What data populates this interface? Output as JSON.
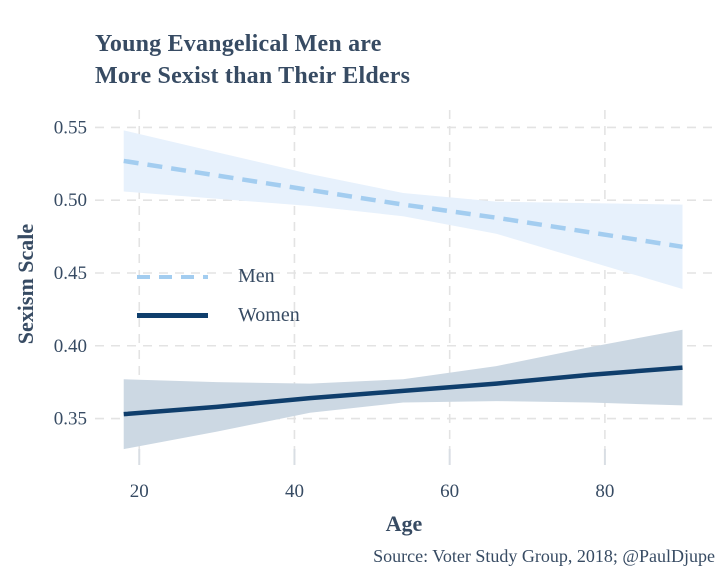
{
  "title": {
    "line1": "Young Evangelical Men are",
    "line2": "More Sexist than Their Elders"
  },
  "axes": {
    "x_label": "Age",
    "y_label": "Sexism Scale"
  },
  "legend": [
    {
      "label": "Men"
    },
    {
      "label": "Women"
    }
  ],
  "source": "Source: Voter Study Group, 2018; @PaulDjupe",
  "colors": {
    "ink": "#374B63",
    "grid": "#E3E3E3",
    "tick": "#D9DEE4",
    "men_line": "#A3CDF0",
    "men_band": "#E7F1FC",
    "women_line": "#0F3E6C",
    "women_band": "#CCD8E3"
  },
  "chart_data": {
    "type": "line",
    "title": "Young Evangelical Men are More Sexist than Their Elders",
    "xlabel": "Age",
    "ylabel": "Sexism Scale",
    "xlim": [
      14.3,
      93.8
    ],
    "ylim": [
      0.327,
      0.562
    ],
    "x_ticks": [
      20,
      40,
      60,
      80
    ],
    "y_ticks": [
      0.35,
      0.4,
      0.45,
      0.5,
      0.55
    ],
    "grid": true,
    "grid_style": "dashed",
    "legend_position": "inside-upper-left",
    "x": [
      18,
      30,
      42,
      54,
      66,
      78,
      90
    ],
    "series": [
      {
        "name": "Men",
        "style": "dashed",
        "values": [
          0.527,
          0.517,
          0.507,
          0.497,
          0.488,
          0.478,
          0.468
        ],
        "ci_upper": [
          0.548,
          0.533,
          0.518,
          0.505,
          0.499,
          0.498,
          0.497
        ],
        "ci_lower": [
          0.506,
          0.501,
          0.496,
          0.489,
          0.477,
          0.458,
          0.439
        ]
      },
      {
        "name": "Women",
        "style": "solid",
        "values": [
          0.353,
          0.358,
          0.364,
          0.369,
          0.374,
          0.38,
          0.385
        ],
        "ci_upper": [
          0.377,
          0.375,
          0.374,
          0.377,
          0.386,
          0.399,
          0.411
        ],
        "ci_lower": [
          0.329,
          0.341,
          0.354,
          0.361,
          0.362,
          0.361,
          0.359
        ]
      }
    ]
  }
}
